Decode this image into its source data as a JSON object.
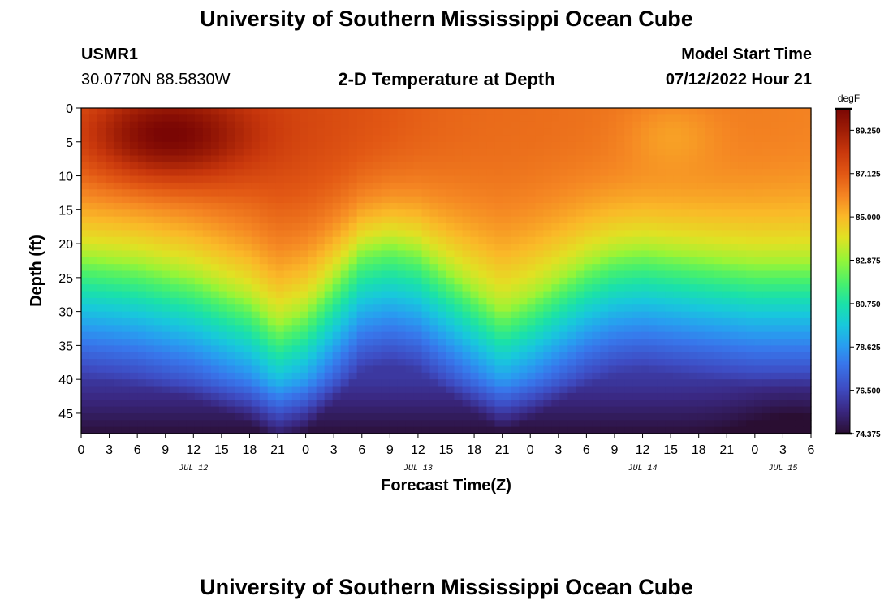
{
  "header": {
    "title": "University of Southern Mississippi Ocean Cube",
    "station_id": "USMR1",
    "coordinates": "30.0770N  88.5830W",
    "plot_subtitle": "2-D Temperature at Depth",
    "model_start_label": "Model Start Time",
    "model_start_value": "07/12/2022 Hour 21"
  },
  "footer": {
    "title": "University of Southern Mississippi Ocean Cube"
  },
  "chart_data": {
    "type": "heatmap",
    "title": "2-D Temperature at Depth",
    "xlabel": "Forecast Time(Z)",
    "ylabel": "Depth (ft)",
    "x_ticks": [
      "0",
      "3",
      "6",
      "9",
      "12",
      "15",
      "18",
      "21",
      "0",
      "3",
      "6",
      "9",
      "12",
      "15",
      "18",
      "21",
      "0",
      "3",
      "6",
      "9",
      "12",
      "15",
      "18",
      "21",
      "0",
      "3",
      "6"
    ],
    "x_range_hours": [
      0,
      78
    ],
    "date_labels": [
      {
        "text": "JUL 12",
        "hour": 12
      },
      {
        "text": "JUL 13",
        "hour": 36
      },
      {
        "text": "JUL 14",
        "hour": 60
      },
      {
        "text": "JUL 15",
        "hour": 75
      }
    ],
    "y_ticks": [
      0,
      5,
      10,
      15,
      20,
      25,
      30,
      35,
      40,
      45
    ],
    "ylim": [
      0,
      48
    ],
    "y_inverted": true,
    "colorbar": {
      "unit": "degF",
      "range": [
        74.375,
        90.3
      ],
      "labels": [
        "89.250",
        "87.125",
        "85.000",
        "82.875",
        "80.750",
        "78.625",
        "76.500",
        "74.375"
      ]
    },
    "thermocline": {
      "description": "depth (ft) of ~83 degF isotherm vs forecast hour",
      "hours": [
        0,
        6,
        12,
        18,
        21,
        24,
        30,
        33,
        36,
        42,
        45,
        48,
        54,
        57,
        60,
        66,
        72,
        78
      ],
      "depth_ft": [
        22,
        23,
        25,
        28.5,
        32,
        30,
        21,
        20,
        21,
        27,
        30,
        28,
        23,
        21.5,
        21,
        22,
        23,
        23
      ]
    },
    "warm_core": {
      "hour": 9,
      "depth_ft": 4,
      "value_degF": 90
    }
  }
}
